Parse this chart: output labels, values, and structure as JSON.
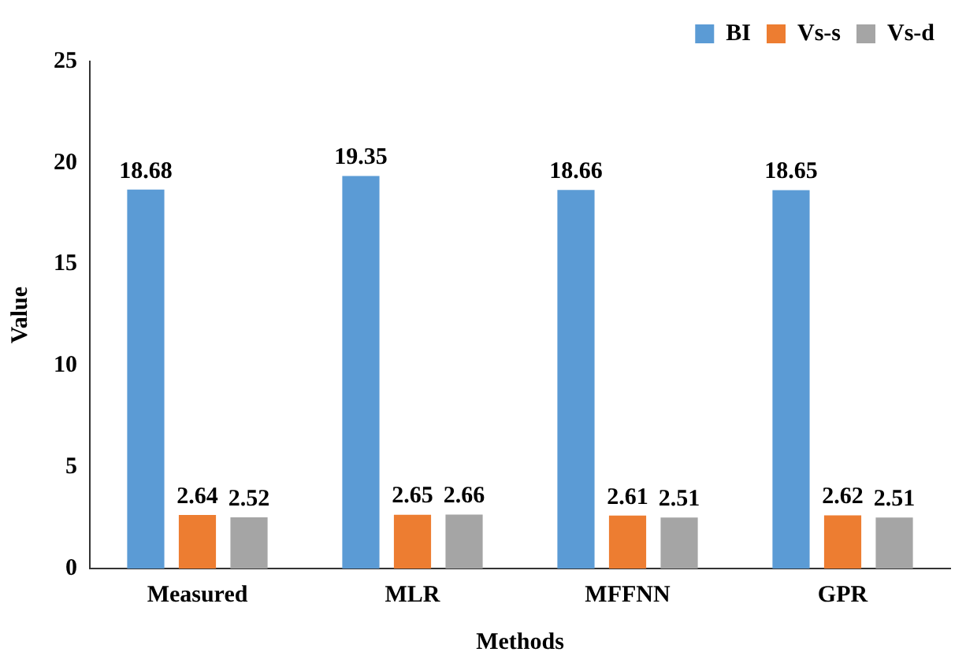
{
  "chart_data": {
    "type": "bar",
    "xlabel": "Methods",
    "ylabel": "Value",
    "categories": [
      "Measured",
      "MLR",
      "MFFNN",
      "GPR"
    ],
    "series": [
      {
        "name": "BI",
        "color": "#5b9bd5",
        "values": [
          18.68,
          19.35,
          18.66,
          18.65
        ]
      },
      {
        "name": "Vs-s",
        "color": "#ed7d31",
        "values": [
          2.64,
          2.65,
          2.61,
          2.62
        ]
      },
      {
        "name": "Vs-d",
        "color": "#a5a5a5",
        "values": [
          2.52,
          2.66,
          2.51,
          2.51
        ]
      }
    ],
    "ylim": [
      0,
      25
    ],
    "yticks": [
      0,
      5,
      10,
      15,
      20,
      25
    ],
    "grid": false,
    "legend": "top right",
    "data_labels": true
  }
}
